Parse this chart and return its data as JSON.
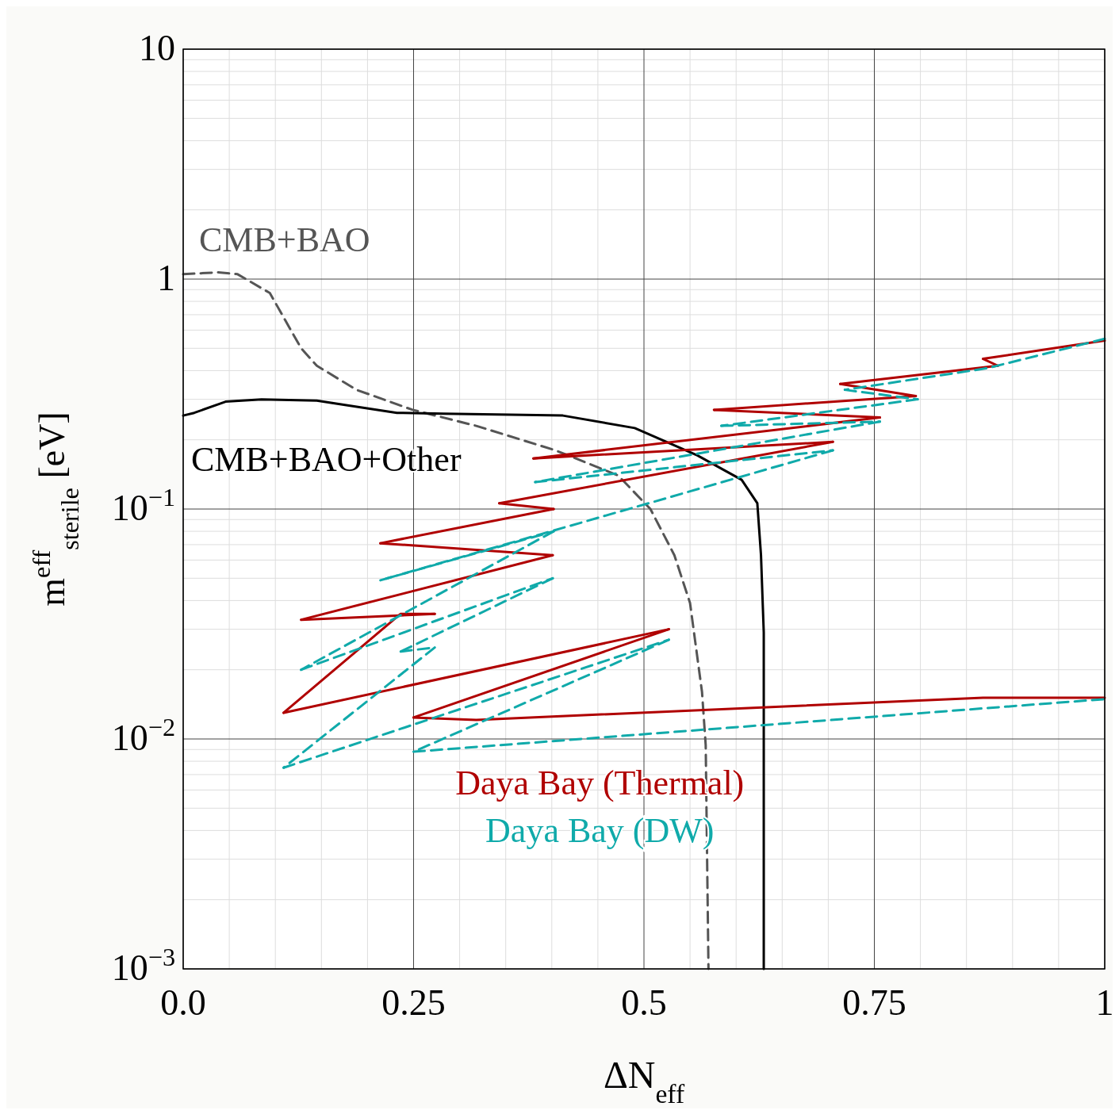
{
  "chart_data": {
    "type": "line",
    "xlabel": "ΔN$_{eff}$",
    "ylabel": "m$^{eff}$$_{sterile}$ [eV]",
    "log": "y",
    "grid": true,
    "xlim": [
      0,
      1
    ],
    "xticks": [
      {
        "value": 0,
        "label": "0.0"
      },
      0.25,
      0.5,
      0.75,
      1
    ],
    "ylim": [
      0.001,
      10
    ],
    "yticks": [
      {
        "value": 0.001,
        "label": "10$^{−3}$"
      },
      {
        "value": 0.01,
        "label": "10$^{−2}$"
      },
      {
        "value": 0.1,
        "label": "10$^{−1}$"
      },
      1,
      10
    ],
    "series": [
      {
        "name": "CMB+BAO",
        "color": "#555555",
        "line_style": "dashed",
        "x": [
          0,
          0.038,
          0.059,
          0.094,
          0.128,
          0.145,
          0.188,
          0.249,
          0.318,
          0.404,
          0.472,
          0.507,
          0.533,
          0.55,
          0.563,
          0.567,
          0.57
        ],
        "values": [
          1.05,
          1.07,
          1.05,
          0.87,
          0.5,
          0.42,
          0.33,
          0.27,
          0.23,
          0.18,
          0.14,
          0.1,
          0.063,
          0.039,
          0.016,
          0.0094,
          0.001
        ]
      },
      {
        "name": "CMB+BAO+Other",
        "color": "#000000",
        "line_style": "solid",
        "x": [
          0,
          0.012,
          0.046,
          0.085,
          0.145,
          0.232,
          0.283,
          0.412,
          0.49,
          0.558,
          0.606,
          0.623,
          0.627,
          0.63,
          0.63
        ],
        "values": [
          0.255,
          0.262,
          0.293,
          0.3,
          0.296,
          0.262,
          0.26,
          0.255,
          0.225,
          0.171,
          0.134,
          0.106,
          0.063,
          0.029,
          0.001
        ]
      },
      {
        "name": "Daya Bay (Thermal)",
        "color": "#b00000",
        "line_style": "solid",
        "x": [
          1,
          0.868
        ],
        "values": [
          0.54,
          0.45
        ]
      },
      {
        "color": "#b00000",
        "line_style": "solid",
        "x": [
          0.868,
          0.884
        ],
        "values": [
          0.45,
          0.42
        ]
      },
      {
        "color": "#b00000",
        "line_style": "solid",
        "x": [
          0.884,
          0.713
        ],
        "values": [
          0.42,
          0.35
        ]
      },
      {
        "color": "#b00000",
        "line_style": "solid",
        "x": [
          0.713,
          0.795
        ],
        "values": [
          0.35,
          0.31
        ]
      },
      {
        "color": "#b00000",
        "line_style": "solid",
        "x": [
          0.795,
          0.576
        ],
        "values": [
          0.31,
          0.27
        ]
      },
      {
        "color": "#b00000",
        "line_style": "solid",
        "x": [
          0.576,
          0.756
        ],
        "values": [
          0.27,
          0.25
        ]
      },
      {
        "color": "#b00000",
        "line_style": "solid",
        "x": [
          0.756,
          0.38
        ],
        "values": [
          0.25,
          0.166
        ]
      },
      {
        "color": "#b00000",
        "line_style": "solid",
        "x": [
          0.38,
          0.705
        ],
        "values": [
          0.166,
          0.196
        ]
      },
      {
        "color": "#b00000",
        "line_style": "solid",
        "x": [
          0.705,
          0.343
        ],
        "values": [
          0.196,
          0.106
        ]
      },
      {
        "color": "#b00000",
        "line_style": "solid",
        "x": [
          0.343,
          0.402
        ],
        "values": [
          0.106,
          0.1
        ]
      },
      {
        "color": "#b00000",
        "line_style": "solid",
        "x": [
          0.402,
          0.214
        ],
        "values": [
          0.1,
          0.071
        ]
      },
      {
        "color": "#b00000",
        "line_style": "solid",
        "x": [
          0.214,
          0.401
        ],
        "values": [
          0.071,
          0.063
        ]
      },
      {
        "color": "#b00000",
        "line_style": "solid",
        "x": [
          0.401,
          0.128
        ],
        "values": [
          0.063,
          0.033
        ]
      },
      {
        "color": "#b00000",
        "line_style": "solid",
        "x": [
          0.128,
          0.273
        ],
        "values": [
          0.033,
          0.035
        ]
      },
      {
        "color": "#b00000",
        "line_style": "solid",
        "x": [
          0.273,
          0.236,
          0.109
        ],
        "values": [
          0.035,
          0.035,
          0.013
        ]
      },
      {
        "color": "#b00000",
        "line_style": "solid",
        "x": [
          0.109,
          0.527
        ],
        "values": [
          0.013,
          0.03
        ]
      },
      {
        "color": "#b00000",
        "line_style": "solid",
        "x": [
          0.527,
          0.25
        ],
        "values": [
          0.03,
          0.0124
        ]
      },
      {
        "color": "#b00000",
        "line_style": "solid",
        "x": [
          0.25,
          0.318,
          0.868,
          1
        ],
        "values": [
          0.0124,
          0.0121,
          0.0151,
          0.0151
        ]
      },
      {
        "name": "Daya Bay (DW)",
        "color": "#10aaaa",
        "line_style": "dashed",
        "x": [
          1,
          0.873,
          0.718
        ],
        "values": [
          0.55,
          0.41,
          0.33
        ]
      },
      {
        "color": "#10aaaa",
        "line_style": "dashed",
        "x": [
          0.718,
          0.797
        ],
        "values": [
          0.33,
          0.3
        ]
      },
      {
        "color": "#10aaaa",
        "line_style": "dashed",
        "x": [
          0.797,
          0.584
        ],
        "values": [
          0.3,
          0.23
        ]
      },
      {
        "color": "#10aaaa",
        "line_style": "dashed",
        "x": [
          0.584,
          0.756
        ],
        "values": [
          0.23,
          0.24
        ]
      },
      {
        "color": "#10aaaa",
        "line_style": "dashed",
        "x": [
          0.756,
          0.382
        ],
        "values": [
          0.24,
          0.131
        ]
      },
      {
        "color": "#10aaaa",
        "line_style": "dashed",
        "x": [
          0.382,
          0.705
        ],
        "values": [
          0.131,
          0.18
        ]
      },
      {
        "color": "#10aaaa",
        "line_style": "dashed",
        "x": [
          0.705,
          0.214
        ],
        "values": [
          0.18,
          0.049
        ]
      },
      {
        "color": "#10aaaa",
        "line_style": "dashed",
        "x": [
          0.214,
          0.402
        ],
        "values": [
          0.049,
          0.08
        ]
      },
      {
        "color": "#10aaaa",
        "line_style": "dashed",
        "x": [
          0.402,
          0.128
        ],
        "values": [
          0.08,
          0.02
        ]
      },
      {
        "color": "#10aaaa",
        "line_style": "dashed",
        "x": [
          0.128,
          0.401
        ],
        "values": [
          0.02,
          0.05
        ]
      },
      {
        "color": "#10aaaa",
        "line_style": "dashed",
        "x": [
          0.401,
          0.236
        ],
        "values": [
          0.05,
          0.024
        ]
      },
      {
        "color": "#10aaaa",
        "line_style": "dashed",
        "x": [
          0.236,
          0.273
        ],
        "values": [
          0.024,
          0.025
        ]
      },
      {
        "color": "#10aaaa",
        "line_style": "dashed",
        "x": [
          0.273,
          0.109
        ],
        "values": [
          0.025,
          0.0075
        ]
      },
      {
        "color": "#10aaaa",
        "line_style": "dashed",
        "x": [
          0.109,
          0.527
        ],
        "values": [
          0.0075,
          0.027
        ]
      },
      {
        "color": "#10aaaa",
        "line_style": "dashed",
        "x": [
          0.527,
          0.25
        ],
        "values": [
          0.027,
          0.0088
        ]
      },
      {
        "color": "#10aaaa",
        "line_style": "dashed",
        "x": [
          0.25,
          1
        ],
        "values": [
          0.0088,
          0.0149
        ]
      }
    ]
  }
}
